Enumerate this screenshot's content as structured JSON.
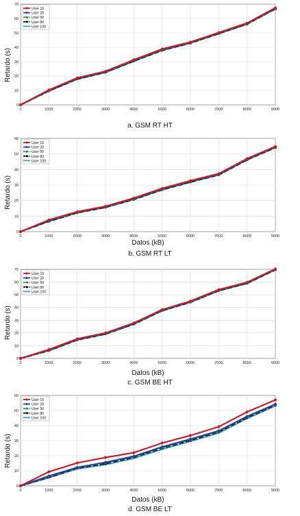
{
  "chart_data": [
    {
      "type": "line",
      "caption": "a. GSM RT HT",
      "xlabel": "",
      "ylabel": "Retardo (s)",
      "x": [
        0,
        1000,
        2000,
        3000,
        4000,
        5000,
        6000,
        7000,
        8000,
        9000
      ],
      "xlim": [
        0,
        9000
      ],
      "ylim": [
        0,
        70
      ],
      "yticks": [
        0,
        10,
        20,
        30,
        40,
        50,
        60,
        70
      ],
      "legend": "top-left",
      "grid": true,
      "series": [
        {
          "name": "User 10",
          "color": "#c0202a",
          "values": [
            0,
            10.3,
            18.7,
            23.3,
            31.3,
            38.8,
            43.6,
            50.2,
            56.8,
            67.4
          ]
        },
        {
          "name": "User 20",
          "color": "#2a3f9a",
          "values": [
            0,
            10.0,
            18.4,
            23.0,
            31.0,
            38.5,
            43.4,
            50.0,
            56.6,
            67.2
          ]
        },
        {
          "name": "User 50",
          "color": "#2f8f3a",
          "values": [
            0,
            9.8,
            18.2,
            22.8,
            30.7,
            38.2,
            43.2,
            49.8,
            56.4,
            67.0
          ]
        },
        {
          "name": "User 80",
          "color": "#111111",
          "values": [
            0,
            9.7,
            18.0,
            22.7,
            30.5,
            38.0,
            43.0,
            49.6,
            56.2,
            66.8
          ]
        },
        {
          "name": "User 100",
          "color": "#37a3b8",
          "values": [
            0,
            9.5,
            17.8,
            22.4,
            30.2,
            37.7,
            42.8,
            49.4,
            56.0,
            66.6
          ]
        }
      ]
    },
    {
      "type": "line",
      "caption": "b. GSM RT LT",
      "xlabel": "Datos (kB)",
      "ylabel": "Retardo (s)",
      "x": [
        0,
        1000,
        2000,
        3000,
        4000,
        5000,
        6000,
        7000,
        8000,
        9000
      ],
      "xlim": [
        0,
        9000
      ],
      "ylim": [
        0,
        60
      ],
      "yticks": [
        0,
        10,
        20,
        30,
        40,
        50,
        60
      ],
      "legend": "top-left",
      "grid": true,
      "series": [
        {
          "name": "User 10",
          "color": "#c0202a",
          "values": [
            0,
            7.5,
            12.8,
            16.3,
            21.6,
            27.8,
            32.8,
            37.3,
            47.0,
            54.8
          ]
        },
        {
          "name": "User 20",
          "color": "#2a3f9a",
          "values": [
            0,
            7.2,
            12.6,
            16.1,
            21.3,
            27.5,
            32.5,
            37.0,
            46.7,
            54.6
          ]
        },
        {
          "name": "User 50",
          "color": "#2f8f3a",
          "values": [
            0,
            6.9,
            12.4,
            15.9,
            21.0,
            27.2,
            32.2,
            36.8,
            46.5,
            54.4
          ]
        },
        {
          "name": "User 80",
          "color": "#111111",
          "values": [
            0,
            6.7,
            12.2,
            15.7,
            20.8,
            27.0,
            32.0,
            36.6,
            46.3,
            54.2
          ]
        },
        {
          "name": "User 100",
          "color": "#37a3b8",
          "values": [
            0,
            6.5,
            12.0,
            15.5,
            20.6,
            26.8,
            31.8,
            36.4,
            46.1,
            54.0
          ]
        }
      ]
    },
    {
      "type": "line",
      "caption": "c. GSM BE HT",
      "xlabel": "Datos (kB)",
      "ylabel": "Retardo (s)",
      "x": [
        0,
        1000,
        2000,
        3000,
        4000,
        5000,
        6000,
        7000,
        8000,
        9000
      ],
      "xlim": [
        0,
        9000
      ],
      "ylim": [
        0,
        70
      ],
      "yticks": [
        0,
        10,
        20,
        30,
        40,
        50,
        60,
        70
      ],
      "legend": "top-left",
      "grid": true,
      "series": [
        {
          "name": "User 10",
          "color": "#c0202a",
          "values": [
            0,
            7.0,
            15.3,
            20.0,
            27.8,
            38.3,
            45.0,
            54.0,
            59.8,
            70.3
          ]
        },
        {
          "name": "User 20",
          "color": "#2a3f9a",
          "values": [
            0,
            6.7,
            15.0,
            19.7,
            27.5,
            38.0,
            44.7,
            53.7,
            59.5,
            70.1
          ]
        },
        {
          "name": "User 50",
          "color": "#2f8f3a",
          "values": [
            0,
            6.4,
            14.8,
            19.5,
            27.2,
            37.8,
            44.5,
            53.5,
            59.3,
            69.9
          ]
        },
        {
          "name": "User 80",
          "color": "#111111",
          "values": [
            0,
            6.2,
            14.6,
            19.3,
            27.0,
            37.6,
            44.3,
            53.3,
            59.1,
            69.7
          ]
        },
        {
          "name": "User 100",
          "color": "#37a3b8",
          "values": [
            0,
            6.0,
            14.4,
            19.0,
            26.8,
            37.3,
            44.0,
            53.0,
            58.8,
            69.5
          ]
        }
      ]
    },
    {
      "type": "line",
      "caption": "d. GSM BE LT",
      "xlabel": "Datos (kB)",
      "ylabel": "Retardo (s)",
      "x": [
        0,
        1000,
        2000,
        3000,
        4000,
        5000,
        6000,
        7000,
        8000,
        9000
      ],
      "xlim": [
        0,
        9000
      ],
      "ylim": [
        0,
        60
      ],
      "yticks": [
        0,
        10,
        20,
        30,
        40,
        50,
        60
      ],
      "legend": "top-left",
      "grid": true,
      "series": [
        {
          "name": "User 10",
          "color": "#c0202a",
          "values": [
            0,
            9.3,
            15.2,
            18.8,
            22.0,
            28.4,
            33.4,
            39.2,
            49.0,
            57.0
          ]
        },
        {
          "name": "User 20",
          "color": "#2a3f9a",
          "values": [
            0,
            6.5,
            12.2,
            15.6,
            19.6,
            25.8,
            31.0,
            36.5,
            46.0,
            54.2
          ]
        },
        {
          "name": "User 50",
          "color": "#2f8f3a",
          "values": [
            0,
            6.1,
            12.0,
            15.2,
            19.2,
            25.3,
            30.6,
            36.1,
            45.6,
            53.9
          ]
        },
        {
          "name": "User 80",
          "color": "#111111",
          "values": [
            0,
            5.8,
            11.8,
            14.8,
            19.0,
            25.0,
            30.2,
            35.8,
            45.3,
            53.6
          ]
        },
        {
          "name": "User 100",
          "color": "#37a3b8",
          "values": [
            0,
            5.3,
            11.2,
            14.0,
            18.2,
            24.2,
            29.4,
            35.0,
            44.6,
            53.0
          ]
        }
      ]
    }
  ]
}
